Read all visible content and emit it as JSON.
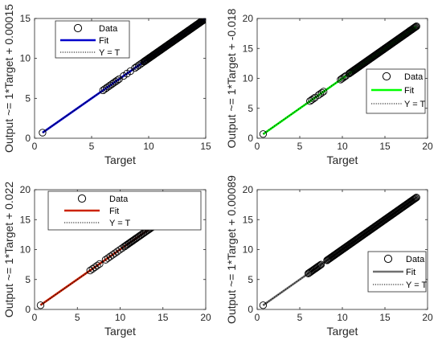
{
  "chart_data": [
    {
      "type": "scatter",
      "panel": "top-left",
      "xlabel": "Target",
      "ylabel": "Output ~= 1*Target + 0.00015",
      "xlim": [
        0,
        15
      ],
      "ylim": [
        0,
        15
      ],
      "xticks": [
        "0",
        "5",
        "10",
        "15"
      ],
      "yticks": [
        "0",
        "5",
        "10",
        "15"
      ],
      "fit_color": "#0000CC",
      "legend_position": "top-left",
      "legend": [
        "Data",
        "Fit",
        "Y = T"
      ],
      "fit": {
        "slope": 1,
        "intercept": 0.00015
      },
      "data_clusters": [
        {
          "x": [
            0.7,
            0.7
          ],
          "n": 1
        },
        {
          "x": [
            6.0,
            7.4
          ],
          "n": 10
        },
        {
          "x": [
            7.8,
            8.4
          ],
          "n": 3
        },
        {
          "x": [
            8.8,
            9.6
          ],
          "n": 6
        },
        {
          "x": [
            9.6,
            15.0
          ],
          "n": 90
        }
      ]
    },
    {
      "type": "scatter",
      "panel": "top-right",
      "xlabel": "Target",
      "ylabel": "Output ~= 1*Target + -0.018",
      "xlim": [
        0,
        20
      ],
      "ylim": [
        0,
        20
      ],
      "xticks": [
        "0",
        "5",
        "10",
        "15",
        "20"
      ],
      "yticks": [
        "0",
        "5",
        "10",
        "15",
        "20"
      ],
      "fit_color": "#00FF00",
      "legend_position": "bottom-right",
      "legend": [
        "Data",
        "Fit",
        "Y = T"
      ],
      "fit": {
        "slope": 1,
        "intercept": -0.018
      },
      "data_clusters": [
        {
          "x": [
            0.7,
            0.7
          ],
          "n": 1
        },
        {
          "x": [
            6.2,
            6.8
          ],
          "n": 4
        },
        {
          "x": [
            7.2,
            7.8
          ],
          "n": 4
        },
        {
          "x": [
            9.8,
            10.4
          ],
          "n": 5
        },
        {
          "x": [
            10.8,
            18.7
          ],
          "n": 90
        }
      ]
    },
    {
      "type": "scatter",
      "panel": "bottom-left",
      "xlabel": "Target",
      "ylabel": "Output ~= 1*Target + 0.022",
      "xlim": [
        0,
        20
      ],
      "ylim": [
        0,
        20
      ],
      "xticks": [
        "0",
        "5",
        "10",
        "15",
        "20"
      ],
      "yticks": [
        "0",
        "5",
        "10",
        "15",
        "20"
      ],
      "fit_color": "#CC2200",
      "legend_position": "top-right",
      "legend": [
        "Data",
        "Fit",
        "Y = T"
      ],
      "fit": {
        "slope": 1,
        "intercept": 0.022
      },
      "data_clusters": [
        {
          "x": [
            0.7,
            0.7
          ],
          "n": 1
        },
        {
          "x": [
            6.5,
            7.6
          ],
          "n": 5
        },
        {
          "x": [
            8.3,
            10.5
          ],
          "n": 9
        },
        {
          "x": [
            10.5,
            18.7
          ],
          "n": 60
        }
      ]
    },
    {
      "type": "scatter",
      "panel": "bottom-right",
      "xlabel": "Target",
      "ylabel": "Output ~= 1*Target + 0.00089",
      "xlim": [
        0,
        20
      ],
      "ylim": [
        0,
        20
      ],
      "xticks": [
        "0",
        "5",
        "10",
        "15",
        "20"
      ],
      "yticks": [
        "0",
        "5",
        "10",
        "15",
        "20"
      ],
      "fit_color": "#707070",
      "legend_position": "bottom-right",
      "legend": [
        "Data",
        "Fit",
        "Y = T"
      ],
      "fit": {
        "slope": 1,
        "intercept": 0.00089
      },
      "data_clusters": [
        {
          "x": [
            0.7,
            0.7
          ],
          "n": 1
        },
        {
          "x": [
            6.0,
            7.5
          ],
          "n": 14
        },
        {
          "x": [
            8.2,
            18.7
          ],
          "n": 110
        }
      ]
    }
  ]
}
